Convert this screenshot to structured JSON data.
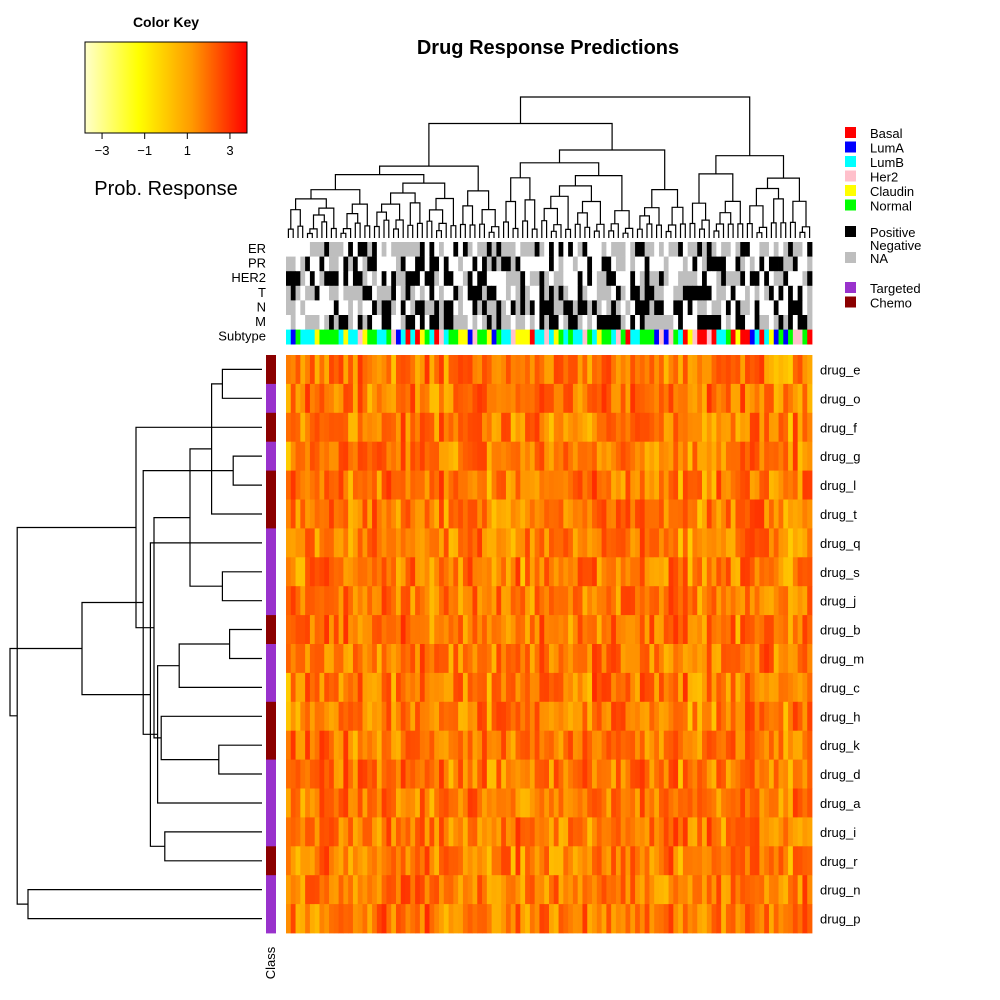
{
  "chart_data": {
    "type": "heatmap",
    "title": "Drug Response Predictions",
    "color_key": {
      "title": "Color Key",
      "label": "Prob. Response",
      "ticks": [
        "−3",
        "−1",
        "1",
        "3"
      ],
      "tick_values": [
        -3,
        -1,
        1,
        3
      ],
      "range": [
        -3.8,
        3.8
      ],
      "colors": [
        "#ffffcc",
        "#ffff00",
        "#ff9900",
        "#ff0000"
      ]
    },
    "rows": [
      "drug_e",
      "drug_o",
      "drug_f",
      "drug_g",
      "drug_l",
      "drug_t",
      "drug_q",
      "drug_s",
      "drug_j",
      "drug_b",
      "drug_m",
      "drug_c",
      "drug_h",
      "drug_k",
      "drug_d",
      "drug_a",
      "drug_i",
      "drug_r",
      "drug_n",
      "drug_p"
    ],
    "row_class": [
      "Chemo",
      "Targeted",
      "Chemo",
      "Targeted",
      "Chemo",
      "Chemo",
      "Targeted",
      "Targeted",
      "Targeted",
      "Chemo",
      "Targeted",
      "Targeted",
      "Chemo",
      "Chemo",
      "Targeted",
      "Targeted",
      "Targeted",
      "Chemo",
      "Targeted",
      "Targeted"
    ],
    "row_class_label": "Class",
    "n_samples": 110,
    "annotation_tracks": [
      "ER",
      "PR",
      "HER2",
      "T",
      "N",
      "M",
      "Subtype"
    ],
    "legend": {
      "subtype": [
        {
          "name": "Basal",
          "color": "#ff0000"
        },
        {
          "name": "LumA",
          "color": "#0000ff"
        },
        {
          "name": "LumB",
          "color": "#00ffff"
        },
        {
          "name": "Her2",
          "color": "#ffc0cb"
        },
        {
          "name": "Claudin",
          "color": "#ffff00"
        },
        {
          "name": "Normal",
          "color": "#00ff00"
        }
      ],
      "status": [
        {
          "name": "Positive",
          "color": "#000000"
        },
        {
          "name": "Negative",
          "color": "#ffffff"
        },
        {
          "name": "NA",
          "color": "#bebebe"
        }
      ],
      "drug_class": [
        {
          "name": "Targeted",
          "color": "#9932cc"
        },
        {
          "name": "Chemo",
          "color": "#8b0000"
        }
      ]
    },
    "status_colors": {
      "Positive": "#000000",
      "Negative": "#ffffff",
      "NA": "#bebebe"
    },
    "row_dendrogram": [
      [
        0,
        1,
        0.11
      ],
      [
        3,
        4,
        0.08
      ],
      [
        5,
        20,
        0.14
      ],
      [
        7,
        8,
        0.11
      ],
      [
        9,
        10,
        0.09
      ],
      [
        13,
        14,
        0.12
      ],
      [
        22,
        23,
        0.2
      ],
      [
        24,
        11,
        0.23
      ],
      [
        25,
        12,
        0.28
      ],
      [
        16,
        17,
        0.27
      ],
      [
        27,
        15,
        0.29
      ],
      [
        28,
        26,
        0.3
      ],
      [
        29,
        6,
        0.31
      ],
      [
        30,
        21,
        0.33
      ],
      [
        2,
        31,
        0.35
      ],
      [
        18,
        19,
        0.65
      ],
      [
        33,
        32,
        0.5
      ],
      [
        34,
        35,
        0.68
      ],
      [
        36,
        37,
        0.7
      ]
    ]
  }
}
